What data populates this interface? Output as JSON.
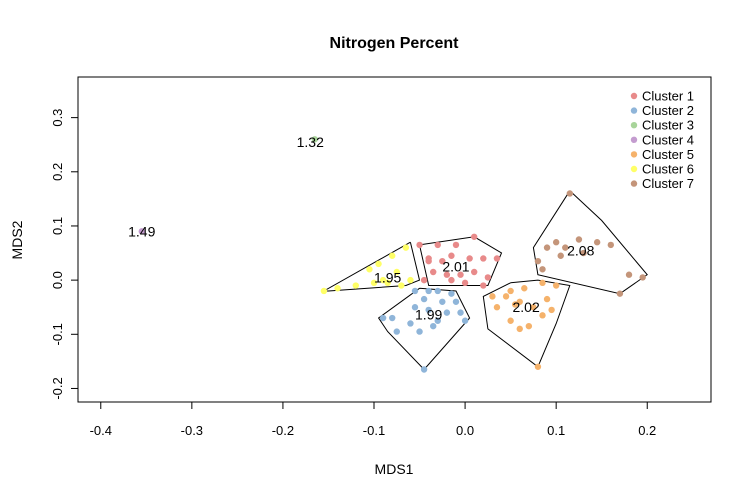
{
  "chart_data": {
    "type": "scatter",
    "title": "Nitrogen Percent",
    "xlabel": "MDS1",
    "ylabel": "MDS2",
    "xlim": [
      -0.425,
      0.27
    ],
    "ylim": [
      -0.225,
      0.375
    ],
    "x_ticks": [
      -0.4,
      -0.3,
      -0.2,
      -0.1,
      0.0,
      0.1,
      0.2
    ],
    "x_tick_labels": [
      "-0.4",
      "-0.3",
      "-0.2",
      "-0.1",
      "0.0",
      "0.1",
      "0.2"
    ],
    "y_ticks": [
      -0.2,
      -0.1,
      0.0,
      0.1,
      0.2,
      0.3
    ],
    "y_tick_labels": [
      "-0.2",
      "-0.1",
      "0.0",
      "0.1",
      "0.2",
      "0.3"
    ],
    "grid": false,
    "legend_position": "top-right",
    "series": [
      {
        "name": "Cluster 1",
        "color": "#e88a8a",
        "label": "2.01",
        "label_pos": [
          -0.01,
          0.025
        ],
        "points": [
          [
            -0.05,
            0.065
          ],
          [
            -0.03,
            0.065
          ],
          [
            -0.01,
            0.065
          ],
          [
            0.01,
            0.08
          ],
          [
            -0.04,
            0.04
          ],
          [
            -0.025,
            0.035
          ],
          [
            -0.015,
            0.045
          ],
          [
            0.005,
            0.04
          ],
          [
            0.02,
            0.04
          ],
          [
            0.035,
            0.04
          ],
          [
            -0.035,
            0.015
          ],
          [
            -0.02,
            0.01
          ],
          [
            -0.005,
            0.01
          ],
          [
            0.01,
            0.015
          ],
          [
            0.025,
            0.005
          ],
          [
            -0.045,
            0.0
          ],
          [
            -0.015,
            0.0
          ],
          [
            0.0,
            -0.005
          ],
          [
            0.02,
            -0.01
          ],
          [
            -0.04,
            0.035
          ]
        ],
        "hull": [
          [
            -0.05,
            0.065
          ],
          [
            0.01,
            0.08
          ],
          [
            0.04,
            0.05
          ],
          [
            0.025,
            -0.01
          ],
          [
            -0.04,
            -0.01
          ],
          [
            -0.05,
            0.065
          ]
        ]
      },
      {
        "name": "Cluster 2",
        "color": "#8fb5d9",
        "label": "1.99",
        "label_pos": [
          -0.04,
          -0.063
        ],
        "points": [
          [
            -0.055,
            -0.02
          ],
          [
            -0.04,
            -0.02
          ],
          [
            -0.03,
            -0.02
          ],
          [
            -0.015,
            -0.025
          ],
          [
            -0.045,
            -0.035
          ],
          [
            -0.025,
            -0.04
          ],
          [
            -0.01,
            -0.04
          ],
          [
            -0.055,
            -0.05
          ],
          [
            -0.04,
            -0.055
          ],
          [
            -0.02,
            -0.06
          ],
          [
            -0.005,
            -0.06
          ],
          [
            -0.03,
            -0.075
          ],
          [
            -0.09,
            -0.07
          ],
          [
            -0.06,
            -0.08
          ],
          [
            -0.035,
            -0.085
          ],
          [
            -0.05,
            -0.095
          ],
          [
            0.0,
            -0.075
          ],
          [
            -0.045,
            -0.165
          ],
          [
            -0.075,
            -0.095
          ],
          [
            -0.08,
            -0.07
          ]
        ],
        "hull": [
          [
            -0.05,
            -0.015
          ],
          [
            -0.01,
            -0.02
          ],
          [
            0.005,
            -0.07
          ],
          [
            -0.045,
            -0.165
          ],
          [
            -0.085,
            -0.095
          ],
          [
            -0.095,
            -0.07
          ],
          [
            -0.05,
            -0.015
          ]
        ]
      },
      {
        "name": "Cluster 3",
        "color": "#a8d49a",
        "label": "1.32",
        "label_pos": [
          -0.17,
          0.255
        ],
        "points": [
          [
            -0.165,
            0.26
          ]
        ],
        "hull": []
      },
      {
        "name": "Cluster 4",
        "color": "#c49ccf",
        "label": "1.49",
        "label_pos": [
          -0.355,
          0.09
        ],
        "points": [
          [
            -0.355,
            0.09
          ]
        ],
        "hull": []
      },
      {
        "name": "Cluster 5",
        "color": "#f5b26b",
        "label": "2.02",
        "label_pos": [
          0.067,
          -0.05
        ],
        "points": [
          [
            0.03,
            -0.03
          ],
          [
            0.05,
            -0.02
          ],
          [
            0.065,
            -0.015
          ],
          [
            0.085,
            -0.005
          ],
          [
            0.1,
            -0.01
          ],
          [
            0.035,
            -0.05
          ],
          [
            0.055,
            -0.045
          ],
          [
            0.075,
            -0.05
          ],
          [
            0.09,
            -0.035
          ],
          [
            0.05,
            -0.075
          ],
          [
            0.07,
            -0.085
          ],
          [
            0.085,
            -0.065
          ],
          [
            0.095,
            -0.055
          ],
          [
            0.06,
            -0.09
          ],
          [
            0.08,
            -0.16
          ],
          [
            0.06,
            -0.04
          ],
          [
            0.045,
            -0.03
          ]
        ],
        "hull": [
          [
            0.05,
            -0.005
          ],
          [
            0.08,
            0.0
          ],
          [
            0.115,
            -0.01
          ],
          [
            0.1,
            -0.08
          ],
          [
            0.08,
            -0.16
          ],
          [
            0.025,
            -0.09
          ],
          [
            0.02,
            -0.03
          ],
          [
            0.05,
            -0.005
          ]
        ]
      },
      {
        "name": "Cluster 6",
        "color": "#ffff66",
        "label": "1.95",
        "label_pos": [
          -0.085,
          0.005
        ],
        "points": [
          [
            -0.065,
            0.06
          ],
          [
            -0.08,
            0.045
          ],
          [
            -0.095,
            0.03
          ],
          [
            -0.105,
            0.02
          ],
          [
            -0.075,
            0.015
          ],
          [
            -0.09,
            0.0
          ],
          [
            -0.1,
            -0.005
          ],
          [
            -0.12,
            -0.01
          ],
          [
            -0.14,
            -0.015
          ],
          [
            -0.07,
            -0.01
          ],
          [
            -0.06,
            0.0
          ],
          [
            -0.085,
            -0.005
          ],
          [
            -0.155,
            -0.02
          ]
        ],
        "hull": [
          [
            -0.06,
            0.07
          ],
          [
            -0.05,
            0.0
          ],
          [
            -0.065,
            -0.01
          ],
          [
            -0.15,
            -0.02
          ],
          [
            -0.155,
            -0.02
          ],
          [
            -0.06,
            0.07
          ]
        ]
      },
      {
        "name": "Cluster 7",
        "color": "#c4957a",
        "label": "2.08",
        "label_pos": [
          0.127,
          0.055
        ],
        "points": [
          [
            0.1,
            0.07
          ],
          [
            0.09,
            0.06
          ],
          [
            0.11,
            0.06
          ],
          [
            0.125,
            0.075
          ],
          [
            0.145,
            0.07
          ],
          [
            0.16,
            0.065
          ],
          [
            0.105,
            0.045
          ],
          [
            0.13,
            0.05
          ],
          [
            0.08,
            0.035
          ],
          [
            0.085,
            0.02
          ],
          [
            0.18,
            0.01
          ],
          [
            0.195,
            0.005
          ],
          [
            0.17,
            -0.025
          ],
          [
            0.115,
            0.16
          ]
        ],
        "hull": [
          [
            0.115,
            0.165
          ],
          [
            0.15,
            0.11
          ],
          [
            0.2,
            0.01
          ],
          [
            0.17,
            -0.025
          ],
          [
            0.08,
            0.01
          ],
          [
            0.075,
            0.06
          ],
          [
            0.115,
            0.165
          ]
        ]
      }
    ]
  }
}
